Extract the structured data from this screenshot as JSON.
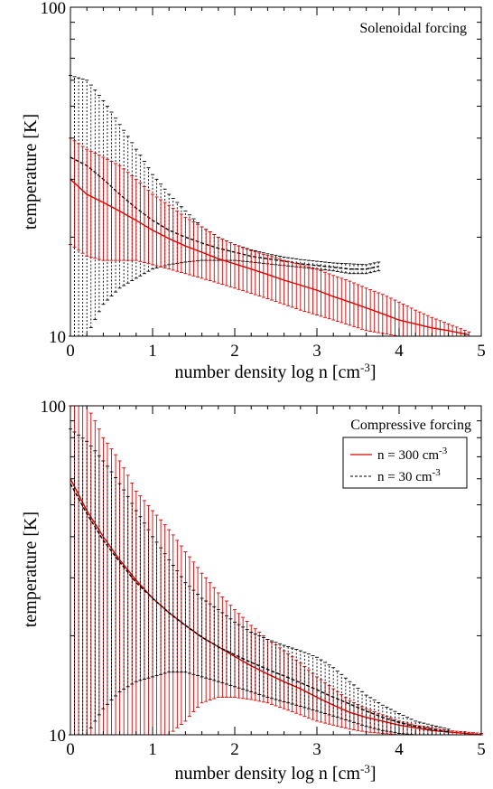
{
  "chart_data": [
    {
      "type": "line",
      "title": "Solenoidal forcing",
      "xlabel": "number density log n [cm",
      "xlabel_sup": "-3",
      "xlabel_close": "]",
      "ylabel": "temperature [K]",
      "xlim": [
        0,
        5
      ],
      "ylim": [
        10,
        100
      ],
      "yscale": "log",
      "xticks": [
        "0",
        "1",
        "2",
        "3",
        "4",
        "5"
      ],
      "yticks": [
        "10",
        "100"
      ],
      "grid": false,
      "error_bars": true,
      "series": [
        {
          "color": "#000000",
          "dash": "dashed",
          "x": [
            0.0,
            0.2,
            0.4,
            0.6,
            0.8,
            1.0,
            1.2,
            1.4,
            1.6,
            1.8,
            2.0,
            2.2,
            2.4,
            2.6,
            2.8,
            3.0,
            3.2,
            3.4,
            3.6,
            3.75
          ],
          "y": [
            35.0,
            33.0,
            30.0,
            27.0,
            24.5,
            22.5,
            21.0,
            20.0,
            19.2,
            18.5,
            18.0,
            17.5,
            17.2,
            16.9,
            16.6,
            16.4,
            16.2,
            16.0,
            16.0,
            16.3
          ],
          "low": [
            10.0,
            10.0,
            12.5,
            14.0,
            15.0,
            16.0,
            16.5,
            16.8,
            17.0,
            17.0,
            17.0,
            16.8,
            16.6,
            16.4,
            16.2,
            16.0,
            15.8,
            15.5,
            15.5,
            15.8
          ],
          "high": [
            62.0,
            60.0,
            52.0,
            44.0,
            37.0,
            31.0,
            27.0,
            24.0,
            21.5,
            20.0,
            19.0,
            18.3,
            17.8,
            17.4,
            17.1,
            16.9,
            16.7,
            16.6,
            16.5,
            16.8
          ]
        },
        {
          "color": "#e00000",
          "dash": "solid",
          "x": [
            0.0,
            0.2,
            0.4,
            0.6,
            0.8,
            1.0,
            1.2,
            1.4,
            1.6,
            1.8,
            2.0,
            2.2,
            2.4,
            2.6,
            2.8,
            3.0,
            3.2,
            3.4,
            3.6,
            3.8,
            4.0,
            4.2,
            4.4,
            4.6,
            4.85
          ],
          "y": [
            30.0,
            27.0,
            25.5,
            24.0,
            22.5,
            21.0,
            19.8,
            18.8,
            18.0,
            17.2,
            16.6,
            16.0,
            15.4,
            14.8,
            14.3,
            13.8,
            13.2,
            12.7,
            12.2,
            11.7,
            11.2,
            10.9,
            10.6,
            10.4,
            10.1
          ],
          "low": [
            19.0,
            17.5,
            17.0,
            17.0,
            17.0,
            16.5,
            16.0,
            15.5,
            15.0,
            14.5,
            14.0,
            13.5,
            13.0,
            12.5,
            12.0,
            11.6,
            11.2,
            10.8,
            10.4,
            10.2,
            10.0,
            10.0,
            10.0,
            10.0,
            10.0
          ],
          "high": [
            40.0,
            37.0,
            35.0,
            33.0,
            30.0,
            27.0,
            25.0,
            23.0,
            21.5,
            20.0,
            19.0,
            18.2,
            17.6,
            17.0,
            16.5,
            16.0,
            15.3,
            14.7,
            14.0,
            13.4,
            12.7,
            12.0,
            11.4,
            10.9,
            10.3
          ]
        }
      ]
    },
    {
      "type": "line",
      "title": "Compressive forcing",
      "xlabel": "number density log n [cm",
      "xlabel_sup": "-3",
      "xlabel_close": "]",
      "ylabel": "temperature [K]",
      "xlim": [
        0,
        5
      ],
      "ylim": [
        10,
        100
      ],
      "yscale": "log",
      "xticks": [
        "0",
        "1",
        "2",
        "3",
        "4",
        "5"
      ],
      "yticks": [
        "10",
        "100"
      ],
      "grid": false,
      "error_bars": true,
      "legend_position": "top-right",
      "series": [
        {
          "name": "n = 300 cm",
          "name_sup": "-3",
          "color": "#e00000",
          "dash": "solid",
          "x": [
            0.0,
            0.2,
            0.4,
            0.6,
            0.8,
            1.0,
            1.2,
            1.4,
            1.6,
            1.8,
            2.0,
            2.2,
            2.4,
            2.6,
            2.8,
            3.0,
            3.2,
            3.4,
            3.6,
            3.8,
            4.0,
            4.2,
            4.4,
            4.6,
            4.8,
            5.0
          ],
          "y": [
            60.0,
            48.0,
            40.0,
            34.0,
            29.5,
            26.0,
            23.5,
            21.5,
            19.8,
            18.5,
            17.3,
            16.2,
            15.3,
            14.5,
            13.8,
            13.0,
            12.3,
            11.7,
            11.3,
            11.0,
            10.7,
            10.5,
            10.3,
            10.2,
            10.1,
            10.0
          ],
          "low": [
            10.0,
            10.0,
            10.0,
            10.0,
            10.0,
            10.0,
            10.0,
            11.0,
            12.5,
            13.0,
            13.0,
            12.8,
            12.5,
            12.0,
            11.5,
            11.0,
            10.7,
            10.4,
            10.2,
            10.1,
            10.0,
            10.0,
            10.0,
            10.0,
            10.0,
            10.0
          ],
          "high": [
            100.0,
            100.0,
            80.0,
            68.0,
            55.0,
            48.0,
            42.0,
            36.0,
            31.0,
            27.0,
            24.0,
            21.5,
            19.5,
            18.0,
            16.5,
            15.0,
            13.8,
            12.7,
            12.0,
            11.5,
            11.0,
            10.7,
            10.5,
            10.3,
            10.2,
            10.1
          ]
        },
        {
          "name": "n = 30 cm",
          "name_sup": "-3",
          "color": "#000000",
          "dash": "dashed",
          "x": [
            0.0,
            0.2,
            0.4,
            0.6,
            0.8,
            1.0,
            1.2,
            1.4,
            1.6,
            1.8,
            2.0,
            2.2,
            2.4,
            2.6,
            2.8,
            3.0,
            3.2,
            3.4,
            3.6,
            3.8,
            4.0,
            4.2,
            4.4,
            4.6
          ],
          "y": [
            58.0,
            47.0,
            39.0,
            33.5,
            29.0,
            26.0,
            23.5,
            21.5,
            19.8,
            18.5,
            17.5,
            16.6,
            15.8,
            15.1,
            14.4,
            13.7,
            13.0,
            12.4,
            11.8,
            11.3,
            10.9,
            10.6,
            10.4,
            10.2
          ],
          "low": [
            10.0,
            10.0,
            12.0,
            13.5,
            14.5,
            15.0,
            15.5,
            15.5,
            15.0,
            14.5,
            14.0,
            13.5,
            13.0,
            12.6,
            12.2,
            11.8,
            11.4,
            11.0,
            10.6,
            10.3,
            10.1,
            10.0,
            10.0,
            10.0
          ],
          "high": [
            85.0,
            78.0,
            68.0,
            58.0,
            48.0,
            40.0,
            34.0,
            29.0,
            26.0,
            24.0,
            22.0,
            20.5,
            19.5,
            18.7,
            18.0,
            17.2,
            16.0,
            14.5,
            13.2,
            12.3,
            11.6,
            11.0,
            10.7,
            10.4
          ]
        }
      ]
    }
  ]
}
